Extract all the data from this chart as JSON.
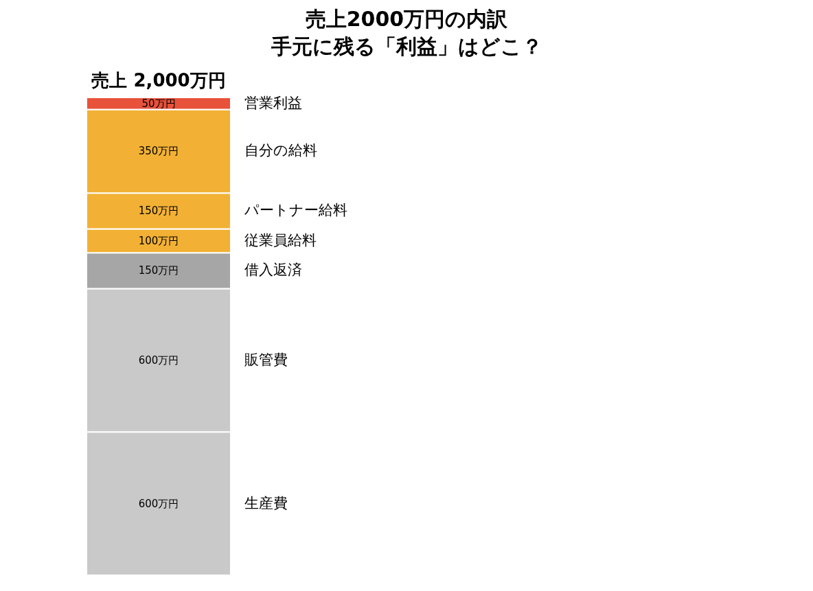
{
  "chart_data": {
    "type": "bar",
    "title": "売上2000万円の内訳",
    "subtitle": "手元に残る「利益」はどこ？",
    "categories": [
      "売上 2,000万円"
    ],
    "stacked": true,
    "tick_labels": "x",
    "series": [
      {
        "name": "生産費",
        "color": "#c9c9c9",
        "values": [
          600
        ],
        "value_labels": [
          "600万円"
        ]
      },
      {
        "name": "販管費",
        "color": "#c9c9c9",
        "values": [
          600
        ],
        "value_labels": [
          "600万円"
        ]
      },
      {
        "name": "借入返済",
        "color": "#a6a6a6",
        "values": [
          150
        ],
        "value_labels": [
          "150万円"
        ]
      },
      {
        "name": "従業員給料",
        "color": "#f2b134",
        "values": [
          100
        ],
        "value_labels": [
          "100万円"
        ]
      },
      {
        "name": "パートナー給料",
        "color": "#f2b134",
        "values": [
          150
        ],
        "value_labels": [
          "150万円"
        ]
      },
      {
        "name": "自分の給料",
        "color": "#f2b134",
        "values": [
          350
        ],
        "value_labels": [
          "350万円"
        ]
      },
      {
        "name": "営業利益",
        "color": "#e8513a",
        "values": [
          50
        ],
        "value_labels": [
          "50万円"
        ]
      }
    ]
  }
}
